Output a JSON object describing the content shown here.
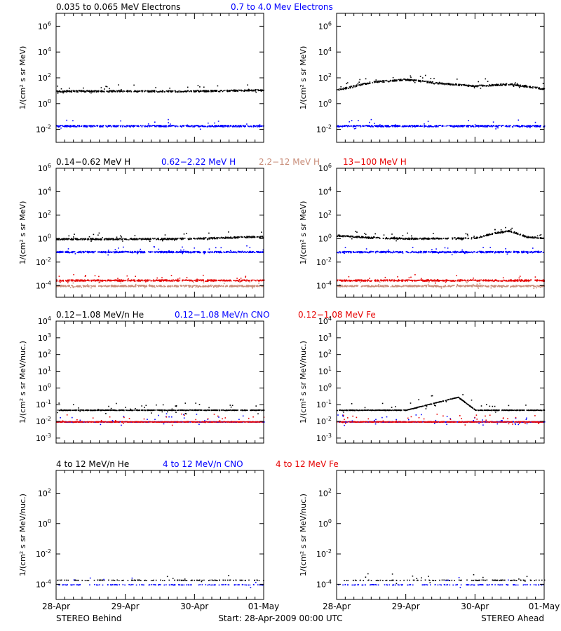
{
  "rows": [
    {
      "legend": [
        {
          "label": "0.035 to 0.065 MeV Electrons",
          "color": "#000000"
        },
        {
          "label": "0.7 to 4.0 Mev Electrons",
          "color": "#0000ff"
        }
      ],
      "ylabel": "1/(cm² s sr MeV)",
      "yticks": [
        "10^6",
        "10^4",
        "10^2",
        "10^0",
        "10^-2"
      ],
      "ylim_log10": [
        -3,
        7
      ]
    },
    {
      "legend": [
        {
          "label": "0.14−0.62 MeV H",
          "color": "#000000"
        },
        {
          "label": "0.62−2.22 MeV H",
          "color": "#0000ff"
        },
        {
          "label": "2.2−12 MeV H",
          "color": "#c88c78"
        },
        {
          "label": "13−100 MeV H",
          "color": "#e60000"
        }
      ],
      "ylabel": "1/(cm² s sr MeV)",
      "yticks": [
        "10^6",
        "10^4",
        "10^2",
        "10^0",
        "10^-2",
        "10^-4"
      ],
      "ylim_log10": [
        -5,
        6
      ]
    },
    {
      "legend": [
        {
          "label": "0.12−1.08 MeV/n He",
          "color": "#000000"
        },
        {
          "label": "0.12−1.08 MeV/n CNO",
          "color": "#0000ff"
        },
        {
          "label": "0.12−1.08 MeV Fe",
          "color": "#e60000"
        }
      ],
      "ylabel": "1/(cm² s sr MeV/nuc.)",
      "yticks": [
        "10^4",
        "10^3",
        "10^2",
        "10^1",
        "10^0",
        "10^-1",
        "10^-2",
        "10^-3"
      ],
      "ylim_log10": [
        -3.3,
        4
      ]
    },
    {
      "legend": [
        {
          "label": "4 to 12 MeV/n He",
          "color": "#000000"
        },
        {
          "label": "4 to 12 MeV/n CNO",
          "color": "#0000ff"
        },
        {
          "label": "4 to 12 MeV Fe",
          "color": "#e60000"
        }
      ],
      "ylabel": "1/(cm² s sr MeV/nuc.)",
      "yticks": [
        "10^2",
        "10^0",
        "10^-2",
        "10^-4"
      ],
      "ylim_log10": [
        -5,
        3.5
      ]
    }
  ],
  "xticks": [
    "28-Apr",
    "29-Apr",
    "30-Apr",
    "01-May"
  ],
  "footer": {
    "left": "STEREO Behind",
    "center": "Start: 28-Apr-2009 00:00 UTC",
    "right": "STEREO Ahead"
  },
  "chart_data": {
    "type": "scatter",
    "title": "",
    "x_axis": "date",
    "x_range": [
      "2009-04-28",
      "2009-05-01"
    ],
    "y_scale": "log",
    "panels": [
      {
        "row": 1,
        "side": "STEREO Behind",
        "series": [
          {
            "name": "0.035 to 0.065 MeV Electrons",
            "points": [
              [
                "2009-04-28",
                10
              ],
              [
                "2009-04-29",
                10
              ],
              [
                "2009-04-30",
                10
              ],
              [
                "2009-05-01",
                12
              ]
            ]
          },
          {
            "name": "0.7 to 4.0 Mev Electrons",
            "points": [
              [
                "2009-04-28",
                0.02
              ],
              [
                "2009-04-29",
                0.02
              ],
              [
                "2009-04-30",
                0.02
              ],
              [
                "2009-05-01",
                0.02
              ]
            ]
          }
        ]
      },
      {
        "row": 1,
        "side": "STEREO Ahead",
        "series": [
          {
            "name": "0.035 to 0.065 MeV Electrons",
            "points": [
              [
                "2009-04-28",
                12
              ],
              [
                "2009-04-28T12:00",
                50
              ],
              [
                "2009-04-29",
                80
              ],
              [
                "2009-04-29T12:00",
                40
              ],
              [
                "2009-04-30",
                25
              ],
              [
                "2009-04-30T12:00",
                35
              ],
              [
                "2009-05-01",
                15
              ]
            ]
          },
          {
            "name": "0.7 to 4.0 Mev Electrons",
            "points": [
              [
                "2009-04-28",
                0.02
              ],
              [
                "2009-04-29",
                0.02
              ],
              [
                "2009-04-30",
                0.02
              ],
              [
                "2009-05-01",
                0.02
              ]
            ]
          }
        ]
      },
      {
        "row": 2,
        "side": "STEREO Behind",
        "series": [
          {
            "name": "0.14−0.62 MeV H",
            "points": [
              [
                "2009-04-28",
                1.0
              ],
              [
                "2009-04-29",
                1.0
              ],
              [
                "2009-04-30",
                1.1
              ],
              [
                "2009-04-30T18:00",
                1.5
              ],
              [
                "2009-05-01",
                1.6
              ]
            ]
          },
          {
            "name": "0.62−2.22 MeV H",
            "points": [
              [
                "2009-04-28",
                0.08
              ],
              [
                "2009-04-29",
                0.08
              ],
              [
                "2009-04-30",
                0.08
              ],
              [
                "2009-05-01",
                0.08
              ]
            ]
          },
          {
            "name": "2.2−12 MeV H",
            "points": [
              [
                "2009-04-28",
                0.0001
              ],
              [
                "2009-04-29",
                0.0001
              ],
              [
                "2009-04-30",
                0.0001
              ],
              [
                "2009-05-01",
                0.0001
              ]
            ]
          },
          {
            "name": "13−100 MeV H",
            "points": [
              [
                "2009-04-28",
                0.0003
              ],
              [
                "2009-04-29",
                0.0003
              ],
              [
                "2009-04-30",
                0.0003
              ],
              [
                "2009-05-01",
                0.0003
              ]
            ]
          }
        ]
      },
      {
        "row": 2,
        "side": "STEREO Ahead",
        "series": [
          {
            "name": "0.14−0.62 MeV H",
            "points": [
              [
                "2009-04-28",
                2.0
              ],
              [
                "2009-04-28T12:00",
                1.3
              ],
              [
                "2009-04-29",
                1.1
              ],
              [
                "2009-04-30",
                1.2
              ],
              [
                "2009-04-30T06:00",
                3.0
              ],
              [
                "2009-04-30T12:00",
                5.0
              ],
              [
                "2009-04-30T18:00",
                1.5
              ],
              [
                "2009-05-01",
                1.2
              ]
            ]
          },
          {
            "name": "0.62−2.22 MeV H",
            "points": [
              [
                "2009-04-28",
                0.08
              ],
              [
                "2009-04-29",
                0.08
              ],
              [
                "2009-04-30",
                0.08
              ],
              [
                "2009-05-01",
                0.08
              ]
            ]
          },
          {
            "name": "2.2−12 MeV H",
            "points": [
              [
                "2009-04-28",
                0.0001
              ],
              [
                "2009-04-29",
                0.0001
              ],
              [
                "2009-04-30",
                0.0001
              ],
              [
                "2009-05-01",
                0.0001
              ]
            ]
          },
          {
            "name": "13−100 MeV H",
            "points": [
              [
                "2009-04-28",
                0.0003
              ],
              [
                "2009-04-29",
                0.0003
              ],
              [
                "2009-04-30",
                0.0003
              ],
              [
                "2009-05-01",
                0.0003
              ]
            ]
          }
        ]
      },
      {
        "row": 3,
        "side": "STEREO Behind",
        "series": [
          {
            "name": "0.12−1.08 MeV/n He",
            "points": [
              [
                "2009-04-28",
                0.05
              ],
              [
                "2009-04-29",
                0.05
              ],
              [
                "2009-04-30",
                0.05
              ],
              [
                "2009-05-01",
                0.05
              ]
            ]
          },
          {
            "name": "0.12−1.08 MeV/n CNO",
            "points": [
              [
                "2009-04-28",
                0.01
              ],
              [
                "2009-04-29",
                0.01
              ],
              [
                "2009-04-30",
                0.01
              ],
              [
                "2009-05-01",
                0.01
              ]
            ]
          },
          {
            "name": "0.12−1.08 MeV Fe",
            "points": [
              [
                "2009-04-28",
                0.01
              ],
              [
                "2009-04-29",
                0.01
              ],
              [
                "2009-04-30",
                0.01
              ],
              [
                "2009-05-01",
                0.01
              ]
            ]
          }
        ]
      },
      {
        "row": 3,
        "side": "STEREO Ahead",
        "series": [
          {
            "name": "0.12−1.08 MeV/n He",
            "points": [
              [
                "2009-04-28",
                0.05
              ],
              [
                "2009-04-29",
                0.05
              ],
              [
                "2009-04-29T18:00",
                0.3
              ],
              [
                "2009-04-30",
                0.05
              ],
              [
                "2009-05-01",
                0.05
              ]
            ]
          },
          {
            "name": "0.12−1.08 MeV/n CNO",
            "points": [
              [
                "2009-04-28",
                0.01
              ],
              [
                "2009-04-29",
                0.01
              ],
              [
                "2009-04-30",
                0.01
              ],
              [
                "2009-05-01",
                0.01
              ]
            ]
          },
          {
            "name": "0.12−1.08 MeV Fe",
            "points": [
              [
                "2009-04-28",
                0.01
              ],
              [
                "2009-04-29",
                0.01
              ],
              [
                "2009-04-30",
                0.01
              ],
              [
                "2009-05-01",
                0.01
              ]
            ]
          }
        ]
      },
      {
        "row": 4,
        "side": "STEREO Behind",
        "series": [
          {
            "name": "4 to 12 MeV/n He",
            "points": [
              [
                "2009-04-28",
                0.0002
              ],
              [
                "2009-04-29",
                0.0002
              ],
              [
                "2009-04-30",
                0.0002
              ],
              [
                "2009-05-01",
                0.0002
              ]
            ]
          },
          {
            "name": "4 to 12 MeV/n CNO",
            "points": [
              [
                "2009-04-28",
                0.0001
              ],
              [
                "2009-04-29",
                0.0001
              ],
              [
                "2009-04-30",
                0.0001
              ],
              [
                "2009-05-01",
                0.0001
              ]
            ]
          },
          {
            "name": "4 to 12 MeV Fe",
            "points": []
          }
        ]
      },
      {
        "row": 4,
        "side": "STEREO Ahead",
        "series": [
          {
            "name": "4 to 12 MeV/n He",
            "points": [
              [
                "2009-04-28",
                0.0002
              ],
              [
                "2009-04-29",
                0.0002
              ],
              [
                "2009-04-30",
                0.0002
              ],
              [
                "2009-05-01",
                0.0002
              ]
            ]
          },
          {
            "name": "4 to 12 MeV/n CNO",
            "points": [
              [
                "2009-04-28",
                0.0001
              ],
              [
                "2009-04-29",
                0.0001
              ],
              [
                "2009-04-30",
                0.0001
              ],
              [
                "2009-05-01",
                0.0001
              ]
            ]
          },
          {
            "name": "4 to 12 MeV Fe",
            "points": []
          }
        ]
      }
    ]
  }
}
